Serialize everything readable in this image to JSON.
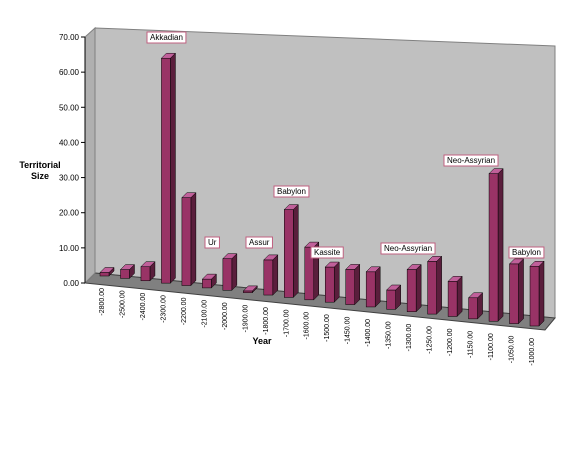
{
  "chart_data": {
    "type": "bar3d",
    "y_label": "Territorial Size",
    "x_label": "Year",
    "categories": [
      "-2800.00",
      "-2500.00",
      "-2400.00",
      "-2300.00",
      "-2200.00",
      "-2100.00",
      "-2000.00",
      "-1900.00",
      "-1800.00",
      "-1700.00",
      "-1600.00",
      "-1500.00",
      "-1450.00",
      "-1400.00",
      "-1350.00",
      "-1300.00",
      "-1250.00",
      "-1200.00",
      "-1150.00",
      "-1100.00",
      "-1050.00",
      "-1000.00"
    ],
    "values": [
      1,
      2.5,
      4,
      64,
      25,
      2.5,
      9,
      0.5,
      10,
      25,
      15,
      10,
      10,
      10,
      5.5,
      12,
      15,
      10,
      6,
      42,
      17,
      17
    ],
    "color": "#993366",
    "ylim": [
      0,
      70
    ],
    "yticks": [
      {
        "value": 0,
        "label": "0.00"
      },
      {
        "value": 10,
        "label": "10.00"
      },
      {
        "value": 20,
        "label": "20.00"
      },
      {
        "value": 30,
        "label": "30.00"
      },
      {
        "value": 40,
        "label": "40.00"
      },
      {
        "value": 50,
        "label": "50.00"
      },
      {
        "value": 60,
        "label": "60.00"
      },
      {
        "value": 70,
        "label": "70.00"
      }
    ],
    "annotations": [
      "Akkadian",
      "Ur",
      "Assur",
      "Babylon",
      "Kassite",
      "Neo-Assyrian",
      "Neo-Assyrian",
      "Babylon"
    ]
  }
}
